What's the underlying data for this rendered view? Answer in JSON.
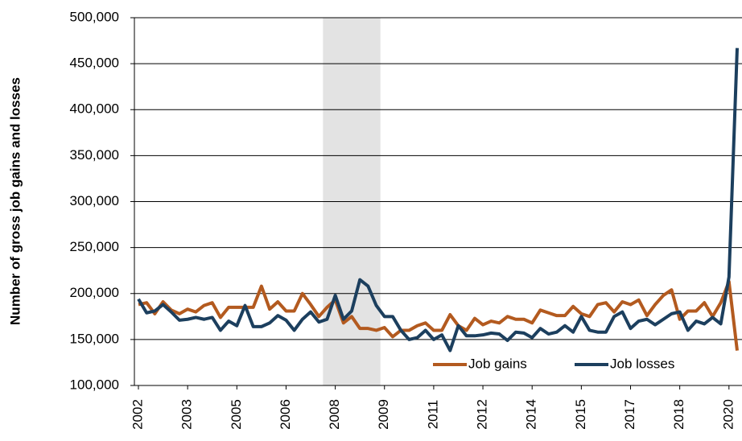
{
  "chart_data": {
    "type": "line",
    "y_label": "Number of gross job gains and losses",
    "categories": [
      "2002",
      null,
      null,
      null,
      null,
      null,
      "2003",
      null,
      null,
      null,
      null,
      null,
      "2005",
      null,
      null,
      null,
      null,
      null,
      "2006",
      null,
      null,
      null,
      null,
      null,
      "2008",
      null,
      null,
      null,
      null,
      null,
      "2009",
      null,
      null,
      null,
      null,
      null,
      "2011",
      null,
      null,
      null,
      null,
      null,
      "2012",
      null,
      null,
      null,
      null,
      null,
      "2014",
      null,
      null,
      null,
      null,
      null,
      "2015",
      null,
      null,
      null,
      null,
      null,
      "2017",
      null,
      null,
      null,
      null,
      null,
      "2018",
      null,
      null,
      null,
      null,
      null,
      "2020",
      null
    ],
    "series": [
      {
        "name": "Job gains",
        "color": "#b35a1f",
        "values": [
          188000,
          190000,
          178000,
          191000,
          182000,
          178000,
          183000,
          180000,
          187000,
          190000,
          174000,
          185000,
          185000,
          185000,
          185000,
          208000,
          183000,
          191000,
          181000,
          181000,
          200000,
          188000,
          175000,
          185000,
          193000,
          168000,
          175000,
          162000,
          162000,
          160000,
          163000,
          153000,
          160000,
          160000,
          165000,
          168000,
          160000,
          160000,
          177000,
          165000,
          160000,
          173000,
          166000,
          170000,
          168000,
          175000,
          172000,
          172000,
          168000,
          182000,
          179000,
          176000,
          176000,
          186000,
          178000,
          175000,
          188000,
          190000,
          180000,
          191000,
          188000,
          193000,
          176000,
          188000,
          198000,
          204000,
          172000,
          181000,
          181000,
          190000,
          175000,
          190000,
          213000,
          138000
        ]
      },
      {
        "name": "Job losses",
        "color": "#1c3f5e",
        "values": [
          194000,
          179000,
          181000,
          188000,
          180000,
          171000,
          172000,
          174000,
          172000,
          174000,
          160000,
          170000,
          165000,
          187000,
          164000,
          164000,
          168000,
          176000,
          171000,
          160000,
          172000,
          180000,
          169000,
          172000,
          198000,
          172000,
          181000,
          215000,
          208000,
          187000,
          175000,
          175000,
          160000,
          150000,
          152000,
          160000,
          150000,
          155000,
          138000,
          165000,
          154000,
          154000,
          155000,
          157000,
          156000,
          149000,
          158000,
          157000,
          152000,
          162000,
          156000,
          158000,
          165000,
          158000,
          175000,
          160000,
          158000,
          158000,
          175000,
          180000,
          162000,
          170000,
          172000,
          166000,
          172000,
          178000,
          180000,
          160000,
          170000,
          167000,
          174000,
          167000,
          218000,
          467000
        ]
      }
    ],
    "ylim": [
      100000,
      500000
    ],
    "yticks": [
      {
        "value": 100000,
        "label": "100,000"
      },
      {
        "value": 150000,
        "label": "150,000"
      },
      {
        "value": 200000,
        "label": "200,000"
      },
      {
        "value": 250000,
        "label": "250,000"
      },
      {
        "value": 300000,
        "label": "300,000"
      },
      {
        "value": 350000,
        "label": "350,000"
      },
      {
        "value": 400000,
        "label": "400,000"
      },
      {
        "value": 450000,
        "label": "450,000"
      },
      {
        "value": 500000,
        "label": "500,000"
      }
    ],
    "grid": true,
    "shaded_range": [
      23,
      29
    ],
    "legend": "bottom-right"
  }
}
